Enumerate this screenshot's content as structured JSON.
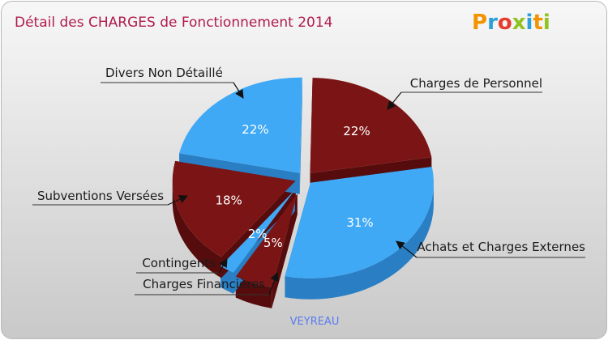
{
  "logo": {
    "text": "Proxiti",
    "colors": [
      "#f29400",
      "#2d9fd9",
      "#e53b2c",
      "#8fc31f",
      "#2d9fd9",
      "#f29400",
      "#8fc31f"
    ]
  },
  "colors": {
    "blue": "#3fa9f5",
    "blue_dark": "#2a7fc4",
    "red": "#7b1515",
    "red_dark": "#560c0c"
  },
  "chart_data": {
    "type": "pie",
    "title": "Détail des CHARGES de Fonctionnement 2014",
    "commune": "VEYREAU",
    "slices": [
      {
        "name": "Charges de Personnel",
        "value": 22,
        "label": "22%",
        "color": "red"
      },
      {
        "name": "Achats et Charges Externes",
        "value": 31,
        "label": "31%",
        "color": "blue"
      },
      {
        "name": "Charges Financières",
        "value": 5,
        "label": "5%",
        "color": "red"
      },
      {
        "name": "Contingents",
        "value": 2,
        "label": "2%",
        "color": "blue"
      },
      {
        "name": "Subventions Versées",
        "value": 18,
        "label": "18%",
        "color": "red"
      },
      {
        "name": "Divers Non Détaillé",
        "value": 22,
        "label": "22%",
        "color": "blue"
      }
    ]
  }
}
